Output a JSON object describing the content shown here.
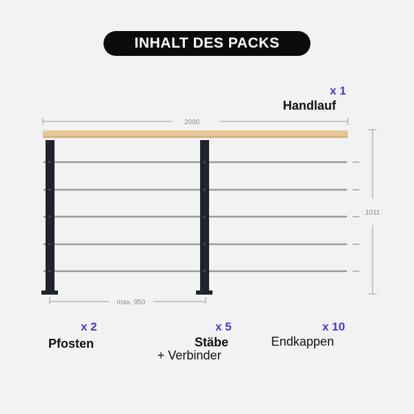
{
  "header": {
    "title": "INHALT DES PACKS"
  },
  "colors": {
    "accent": "#4b37d6",
    "post": "#1f252a",
    "handrail": "#e7c79a",
    "rod": "#9a9a9a"
  },
  "dimensions": {
    "width_label": "2000",
    "height_label": "1011",
    "spacing_label": "max. 950"
  },
  "items": {
    "handlauf": {
      "qty": "x 1",
      "name": "Handlauf"
    },
    "pfosten": {
      "qty": "x 2",
      "name": "Pfosten"
    },
    "staebe": {
      "qty": "x 5",
      "name": "Stäbe",
      "extra": "+ Verbinder"
    },
    "endkappen": {
      "qty": "x 10",
      "name": "Endkappen"
    }
  }
}
